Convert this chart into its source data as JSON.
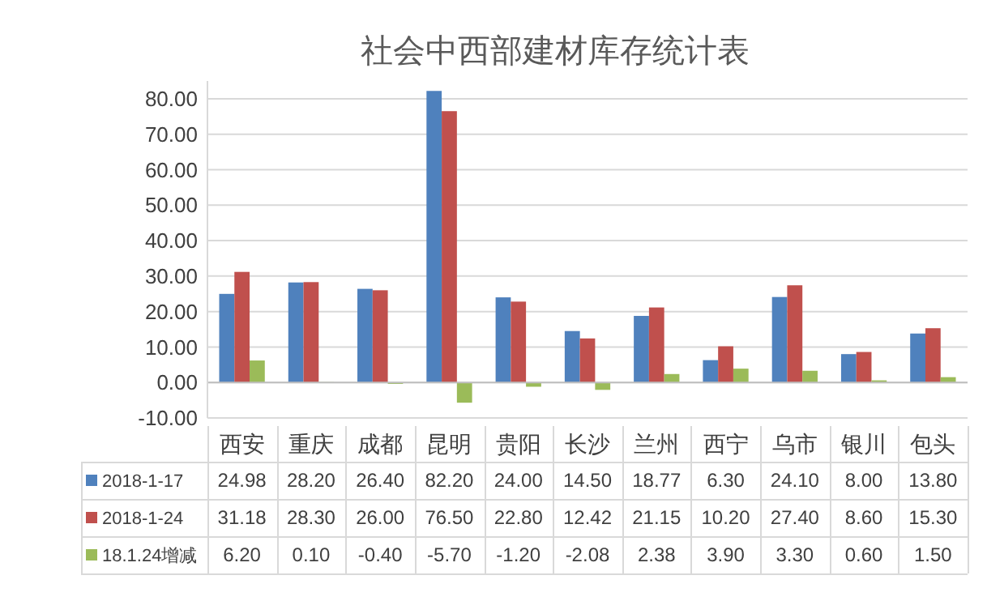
{
  "chart_data": {
    "type": "bar",
    "title": "社会中西部建材库存统计表",
    "categories": [
      "西安",
      "重庆",
      "成都",
      "昆明",
      "贵阳",
      "长沙",
      "兰州",
      "西宁",
      "乌市",
      "银川",
      "包头"
    ],
    "series": [
      {
        "name": "2018-1-17",
        "color": "#4f81bd",
        "values": [
          24.98,
          28.2,
          26.4,
          82.2,
          24.0,
          14.5,
          18.77,
          6.3,
          24.1,
          8.0,
          13.8
        ],
        "value_labels": [
          "24.98",
          "28.20",
          "26.40",
          "82.20",
          "24.00",
          "14.50",
          "18.77",
          "6.30",
          "24.10",
          "8.00",
          "13.80"
        ]
      },
      {
        "name": "2018-1-24",
        "color": "#c0504d",
        "values": [
          31.18,
          28.3,
          26.0,
          76.5,
          22.8,
          12.42,
          21.15,
          10.2,
          27.4,
          8.6,
          15.3
        ],
        "value_labels": [
          "31.18",
          "28.30",
          "26.00",
          "76.50",
          "22.80",
          "12.42",
          "21.15",
          "10.20",
          "27.40",
          "8.60",
          "15.30"
        ]
      },
      {
        "name": "18.1.24增减",
        "color": "#9bbb59",
        "values": [
          6.2,
          0.1,
          -0.4,
          -5.7,
          -1.2,
          -2.08,
          2.38,
          3.9,
          3.3,
          0.6,
          1.5
        ],
        "value_labels": [
          "6.20",
          "0.10",
          "-0.40",
          "-5.70",
          "-1.20",
          "-2.08",
          "2.38",
          "3.90",
          "3.30",
          "0.60",
          "1.50"
        ]
      }
    ],
    "ylim": [
      -10,
      85
    ],
    "yticks": [
      {
        "value": -10,
        "label": "-10.00"
      },
      {
        "value": 0,
        "label": "0.00"
      },
      {
        "value": 10,
        "label": "10.00"
      },
      {
        "value": 20,
        "label": "20.00"
      },
      {
        "value": 30,
        "label": "30.00"
      },
      {
        "value": 40,
        "label": "40.00"
      },
      {
        "value": 50,
        "label": "50.00"
      },
      {
        "value": 60,
        "label": "60.00"
      },
      {
        "value": 70,
        "label": "70.00"
      },
      {
        "value": 80,
        "label": "80.00"
      }
    ],
    "grid": "y",
    "legend": "bottom"
  }
}
